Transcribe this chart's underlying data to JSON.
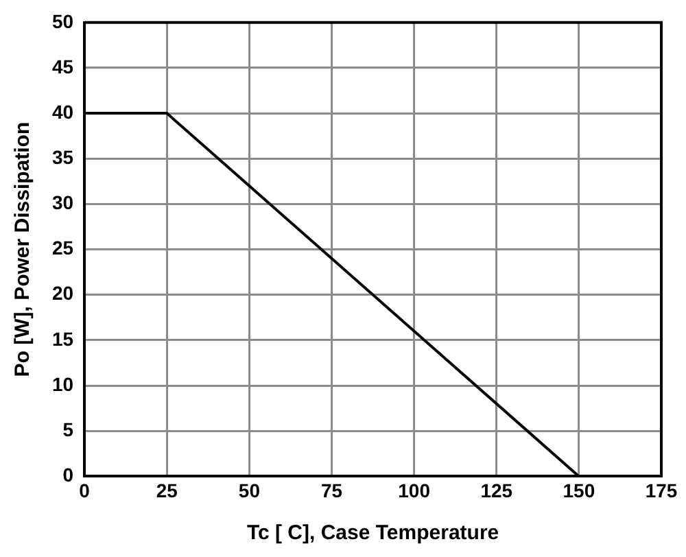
{
  "chart_data": {
    "type": "line",
    "xlabel": "Tc [ C], Case Temperature",
    "ylabel": "Po [W], Power Dissipation",
    "x": [
      0,
      25,
      150
    ],
    "series": [
      {
        "color": "#000000",
        "values": [
          40,
          40,
          0
        ]
      }
    ],
    "xlim": [
      0,
      175
    ],
    "xticks": [
      0,
      25,
      50,
      75,
      100,
      125,
      150,
      175
    ],
    "ylim": [
      0,
      50
    ],
    "yticks": [
      0,
      5,
      10,
      15,
      20,
      25,
      30,
      35,
      40,
      45,
      50
    ],
    "grid": true,
    "legend": false,
    "marker": "none",
    "line_style": "solid"
  }
}
